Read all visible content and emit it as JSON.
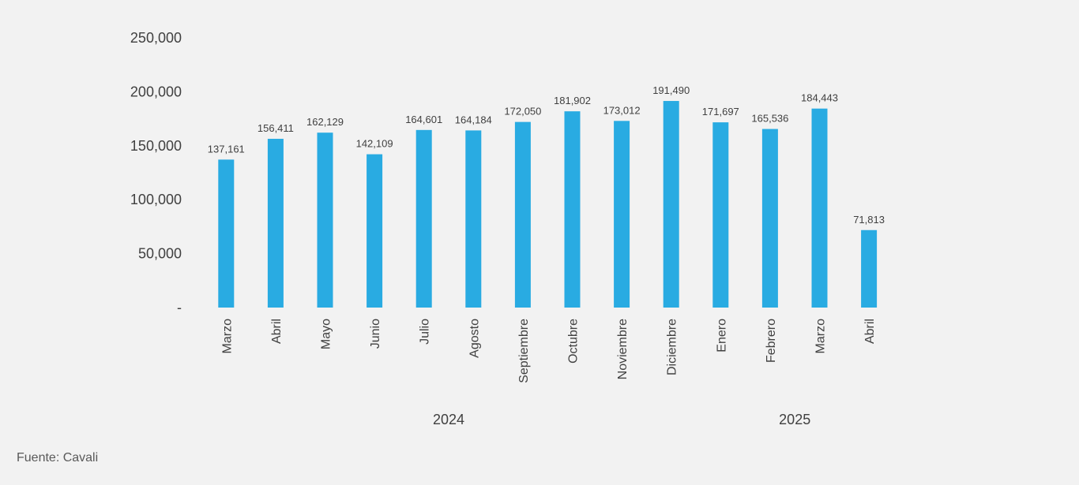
{
  "chart_data": {
    "type": "bar",
    "title": "",
    "xlabel": "",
    "ylabel": "",
    "categories": [
      "Marzo",
      "Abril",
      "Mayo",
      "Junio",
      "Julio",
      "Agosto",
      "Septiembre",
      "Octubre",
      "Noviembre",
      "Diciembre",
      "Enero",
      "Febrero",
      "Marzo",
      "Abril"
    ],
    "category_groups": [
      {
        "label": "2024",
        "start_index": 0,
        "end_index": 9
      },
      {
        "label": "2025",
        "start_index": 10,
        "end_index": 13
      }
    ],
    "values": [
      137161,
      156411,
      162129,
      142109,
      164601,
      164184,
      172050,
      181902,
      173012,
      191490,
      171697,
      165536,
      184443,
      71813
    ],
    "value_labels": [
      "137,161",
      "156,411",
      "162,129",
      "142,109",
      "164,601",
      "164,184",
      "172,050",
      "181,902",
      "173,012",
      "191,490",
      "171,697",
      "165,536",
      "184,443",
      "71,813"
    ],
    "ylim": [
      0,
      250000
    ],
    "yticks": [
      0,
      50000,
      100000,
      150000,
      200000,
      250000
    ],
    "ytick_labels": [
      "-",
      "50,000",
      "100,000",
      "150,000",
      "200,000",
      "250,000"
    ],
    "grid": false,
    "legend": "none",
    "bar_color": "#29abe2"
  },
  "source_note": "Fuente: Cavali"
}
